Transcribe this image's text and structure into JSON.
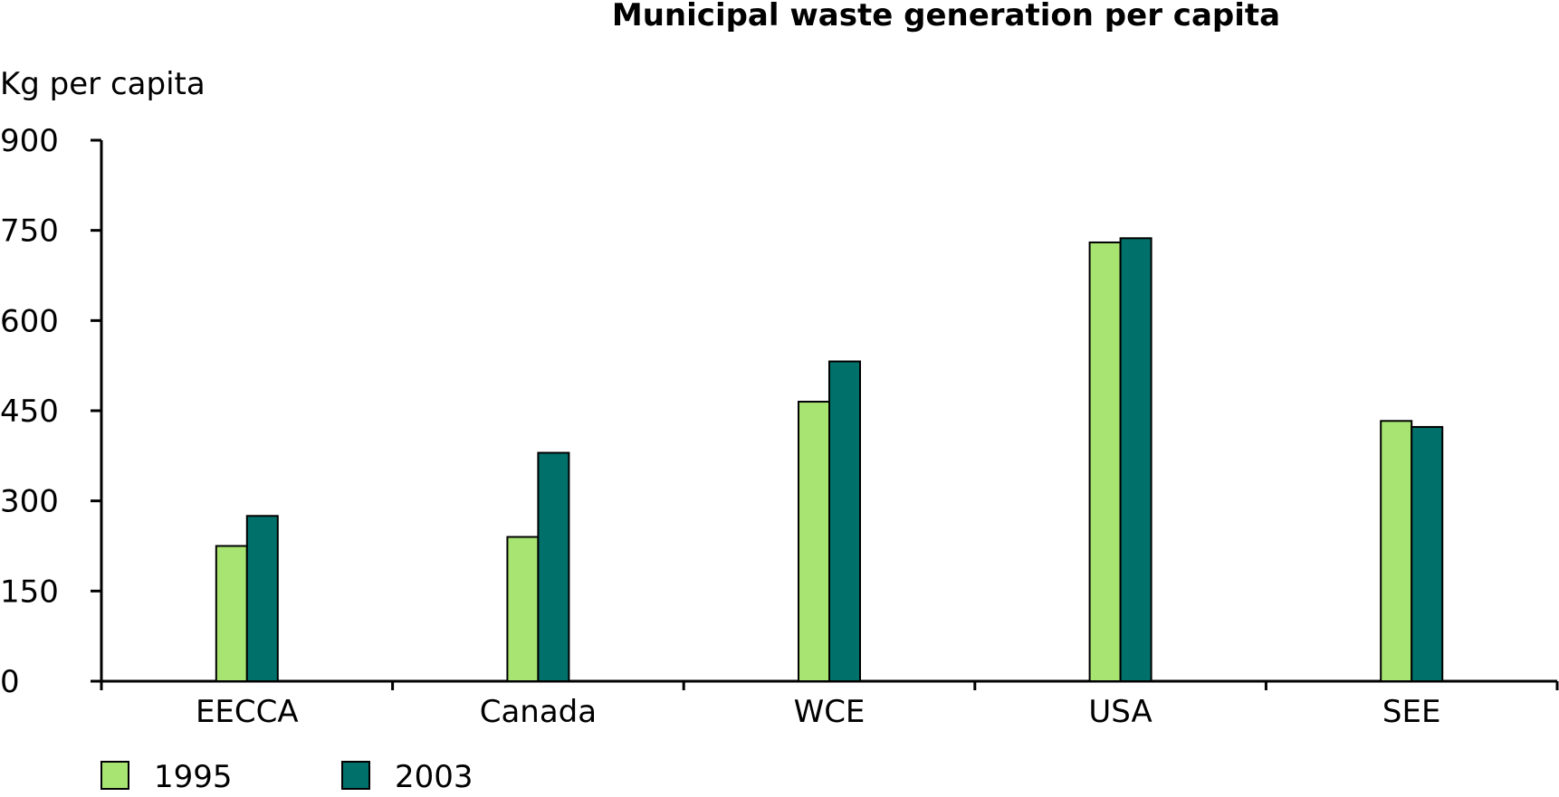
{
  "chart_data": {
    "type": "bar",
    "title": "Municipal waste generation per capita",
    "ylabel": "Kg per capita",
    "xlabel": "",
    "ylim": [
      0,
      900
    ],
    "yticks": [
      0,
      150,
      300,
      450,
      600,
      750,
      900
    ],
    "categories": [
      "EECCA",
      "Canada",
      "WCE",
      "USA",
      "SEE"
    ],
    "series": [
      {
        "name": "1995",
        "color": "#A8E472",
        "values": [
          225,
          240,
          465,
          730,
          433
        ]
      },
      {
        "name": "2003",
        "color": "#00706A",
        "values": [
          275,
          380,
          532,
          737,
          423
        ]
      }
    ],
    "grid": false,
    "legend_position": "bottom-left"
  }
}
